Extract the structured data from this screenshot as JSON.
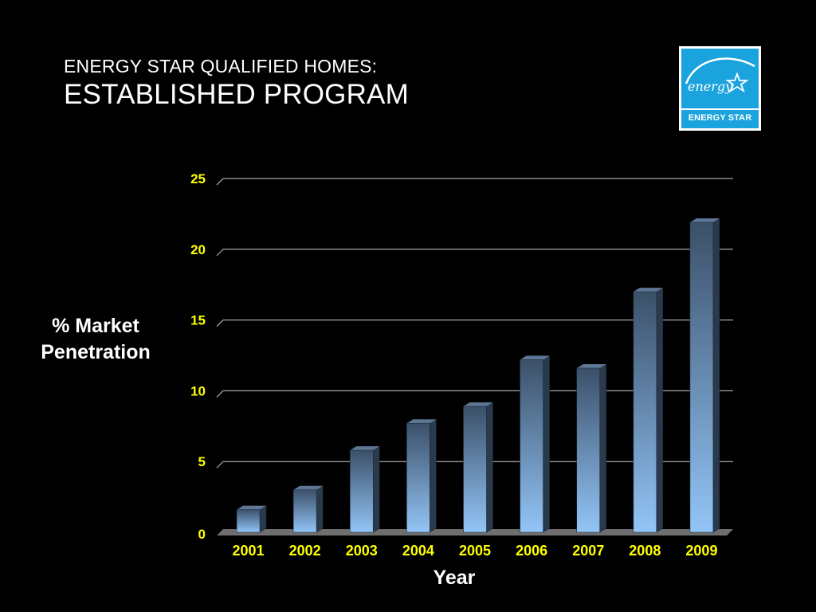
{
  "slide": {
    "title_line1": "ENERGY STAR QUALIFIED HOMES:",
    "title_line2": "ESTABLISHED PROGRAM"
  },
  "logo": {
    "text": "ENERGY STAR",
    "script_text": "energy",
    "icon": "energy-star-logo",
    "color": "#1aa3dc"
  },
  "chart_data": {
    "type": "bar",
    "title": "",
    "xlabel": "Year",
    "ylabel": "% Market Penetration",
    "ylabel_lines": [
      "% Market",
      "Penetration"
    ],
    "categories": [
      "2001",
      "2002",
      "2003",
      "2004",
      "2005",
      "2006",
      "2007",
      "2008",
      "2009"
    ],
    "values": [
      1.6,
      3.0,
      5.8,
      7.7,
      8.9,
      12.2,
      11.6,
      17.0,
      21.9
    ],
    "ylim": [
      0,
      25
    ],
    "yticks": [
      0,
      5,
      10,
      15,
      20,
      25
    ],
    "grid": true,
    "legend": "none",
    "bar_color_top": "#3b5069",
    "bar_color_bottom": "#93c5f7",
    "tick_color": "#ffff00"
  }
}
